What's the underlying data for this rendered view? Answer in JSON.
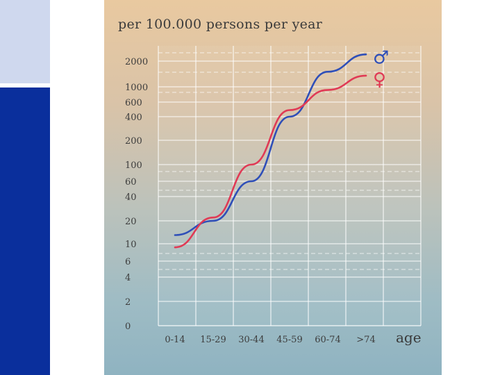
{
  "chart_data": {
    "type": "line",
    "title": "per 100.000 persons per year",
    "xlabel": "age",
    "ylabel": "",
    "y_scale": "log",
    "grid": true,
    "categories": [
      "0-14",
      "15-29",
      "30-44",
      "45-59",
      "60-74",
      ">74"
    ],
    "y_ticks": [
      "2000",
      "1000",
      "600",
      "400",
      "200",
      "100",
      "60",
      "40",
      "20",
      "10",
      "6",
      "4",
      "2",
      "0"
    ],
    "series": [
      {
        "symbol": "♂",
        "color": "#2f4fb8",
        "values": [
          13,
          20,
          60,
          400,
          1500,
          2400
        ]
      },
      {
        "symbol": "♀",
        "color": "#e03a55",
        "values": [
          9,
          22,
          100,
          480,
          900,
          1350
        ]
      }
    ]
  }
}
